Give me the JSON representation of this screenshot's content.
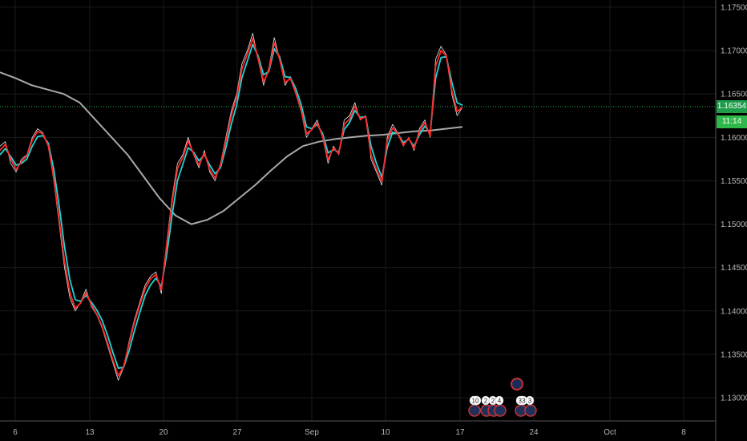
{
  "chart_data": {
    "type": "line",
    "title": "",
    "xlabel": "",
    "ylabel": "",
    "ylim": [
      1.1285,
      1.177
    ],
    "x_ticks": [
      "6",
      "13",
      "20",
      "27",
      "Sep",
      "10",
      "17",
      "24",
      "Oct",
      "8"
    ],
    "y_ticks": [
      "1.17500",
      "1.17000",
      "1.16500",
      "1.16000",
      "1.15500",
      "1.15000",
      "1.14500",
      "1.14000",
      "1.13500",
      "1.13000"
    ],
    "y_tick_values": [
      1.175,
      1.17,
      1.165,
      1.16,
      1.155,
      1.15,
      1.145,
      1.14,
      1.135,
      1.13
    ],
    "current_price": "1.16354",
    "current_price_value": 1.16354,
    "countdown": "11:14",
    "series": [
      {
        "color": "#e8e8e8",
        "values": [
          1.159,
          1.1595,
          1.157,
          1.156,
          1.1575,
          1.158,
          1.16,
          1.161,
          1.1605,
          1.159,
          1.155,
          1.15,
          1.145,
          1.1415,
          1.14,
          1.141,
          1.1425,
          1.1405,
          1.1395,
          1.138,
          1.136,
          1.134,
          1.132,
          1.1335,
          1.1365,
          1.139,
          1.141,
          1.143,
          1.144,
          1.1445,
          1.142,
          1.148,
          1.153,
          1.157,
          1.158,
          1.16,
          1.158,
          1.1565,
          1.1585,
          1.156,
          1.155,
          1.157,
          1.16,
          1.163,
          1.165,
          1.1685,
          1.17,
          1.172,
          1.169,
          1.166,
          1.168,
          1.1715,
          1.169,
          1.166,
          1.167,
          1.165,
          1.163,
          1.16,
          1.161,
          1.162,
          1.16,
          1.157,
          1.159,
          1.158,
          1.162,
          1.1625,
          1.164,
          1.162,
          1.1625,
          1.1575,
          1.156,
          1.1545,
          1.16,
          1.1615,
          1.1605,
          1.159,
          1.16,
          1.1585,
          1.161,
          1.162,
          1.16,
          1.169,
          1.1705,
          1.1695,
          1.165,
          1.1625,
          1.1635
        ]
      },
      {
        "color": "#ff2a2a",
        "values": [
          1.1585,
          1.1592,
          1.1575,
          1.1563,
          1.1572,
          1.1579,
          1.1597,
          1.1607,
          1.1604,
          1.159,
          1.1553,
          1.1505,
          1.1457,
          1.1421,
          1.1403,
          1.1409,
          1.1421,
          1.1407,
          1.1396,
          1.1382,
          1.1363,
          1.1343,
          1.1325,
          1.1336,
          1.1362,
          1.1387,
          1.1407,
          1.1426,
          1.1437,
          1.1442,
          1.1424,
          1.1476,
          1.1525,
          1.1564,
          1.1577,
          1.1596,
          1.1581,
          1.1568,
          1.1582,
          1.1563,
          1.1553,
          1.1568,
          1.1596,
          1.1625,
          1.1646,
          1.1679,
          1.1696,
          1.1714,
          1.1691,
          1.1664,
          1.1677,
          1.1709,
          1.169,
          1.1663,
          1.1668,
          1.1651,
          1.1632,
          1.1604,
          1.1609,
          1.1617,
          1.1601,
          1.1574,
          1.1588,
          1.1581,
          1.1615,
          1.1621,
          1.1636,
          1.1621,
          1.1624,
          1.158,
          1.1563,
          1.1549,
          1.1596,
          1.1611,
          1.1604,
          1.1591,
          1.1599,
          1.1587,
          1.1607,
          1.1617,
          1.1602,
          1.1682,
          1.17,
          1.1694,
          1.1654,
          1.163,
          1.1635
        ]
      },
      {
        "color": "#1fd6d6",
        "values": [
          1.158,
          1.1587,
          1.1578,
          1.1568,
          1.157,
          1.1575,
          1.159,
          1.1601,
          1.1602,
          1.1593,
          1.1563,
          1.1521,
          1.1474,
          1.1436,
          1.1413,
          1.1411,
          1.1418,
          1.141,
          1.1401,
          1.1389,
          1.1372,
          1.1352,
          1.1334,
          1.1335,
          1.1354,
          1.1377,
          1.1398,
          1.1418,
          1.143,
          1.1438,
          1.1428,
          1.1465,
          1.151,
          1.155,
          1.1569,
          1.1588,
          1.1583,
          1.1573,
          1.158,
          1.1568,
          1.1558,
          1.1565,
          1.1588,
          1.1615,
          1.1637,
          1.1669,
          1.1688,
          1.1707,
          1.1694,
          1.1672,
          1.1676,
          1.1702,
          1.1693,
          1.167,
          1.1669,
          1.1656,
          1.1638,
          1.1612,
          1.161,
          1.1615,
          1.1604,
          1.1582,
          1.1586,
          1.1583,
          1.1609,
          1.1617,
          1.1631,
          1.1623,
          1.1624,
          1.159,
          1.157,
          1.1554,
          1.1588,
          1.1606,
          1.1604,
          1.1594,
          1.1598,
          1.159,
          1.1603,
          1.1613,
          1.1605,
          1.1668,
          1.1692,
          1.1693,
          1.1664,
          1.164,
          1.1637
        ]
      },
      {
        "color": "#a9a9a9",
        "values": [
          1.1675,
          1.1668,
          1.166,
          1.1655,
          1.165,
          1.164,
          1.162,
          1.16,
          1.158,
          1.1555,
          1.153,
          1.151,
          1.15,
          1.1505,
          1.1515,
          1.153,
          1.1545,
          1.1562,
          1.1578,
          1.159,
          1.1595,
          1.1598,
          1.16,
          1.1602,
          1.1603,
          1.1605,
          1.1607,
          1.1608,
          1.161,
          1.1612
        ]
      }
    ],
    "series_x": [
      "3",
      "4",
      "5",
      "6",
      "7",
      "8",
      "9",
      "10",
      "11",
      "12",
      "13",
      "14",
      "15",
      "16",
      "17",
      "18",
      "19",
      "20",
      "21",
      "22",
      "23",
      "24",
      "25",
      "26",
      "27",
      "28",
      "29",
      "30",
      "31",
      "Sep",
      "2",
      "3",
      "4",
      "5",
      "6",
      "7",
      "8",
      "9",
      "10",
      "11",
      "12",
      "13",
      "14",
      "15",
      "16",
      "17"
    ]
  },
  "events": [
    {
      "kind": "news",
      "color": "#c83232",
      "y_row": "top"
    },
    {
      "kind": "flag",
      "label": "10",
      "color": "#c83232"
    },
    {
      "kind": "flag",
      "label": "2",
      "color": "#c83232"
    },
    {
      "kind": "flag",
      "label": "2",
      "color": "#c83232"
    },
    {
      "kind": "flag",
      "label": "4",
      "color": "#c83232"
    },
    {
      "kind": "flag",
      "label": "33",
      "color": "#c83232"
    },
    {
      "kind": "flag",
      "label": "3",
      "color": "#c83232"
    }
  ],
  "colors": {
    "background": "#000000",
    "grid": "#1a1a1a",
    "price_line": "#2fb84a",
    "price_tag": "#1e9e4a",
    "countdown_tag": "#2fb84a"
  }
}
